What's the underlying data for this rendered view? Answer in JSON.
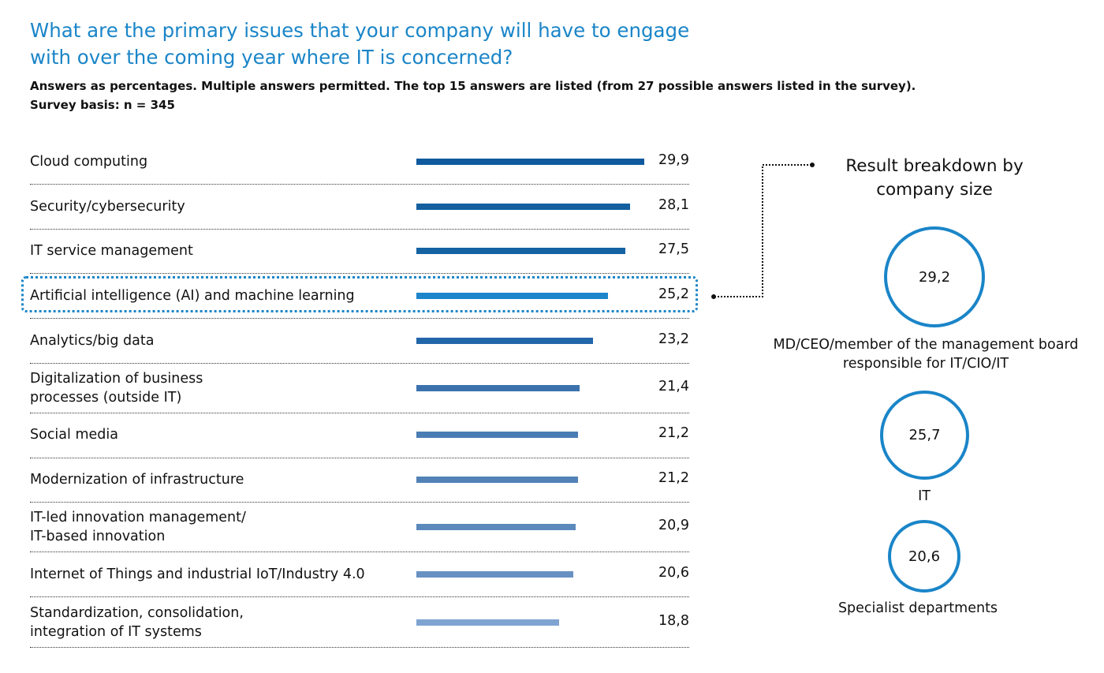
{
  "title_lines": [
    "What are the primary issues that your company will have to engage",
    "with over the coming year where IT is concerned?"
  ],
  "subtitle_lines": [
    "Answers as percentages. Multiple answers permitted. The top 15 answers are listed (from 27 possible answers listed in the survey).",
    "Survey basis: n = 345"
  ],
  "colors": {
    "accent": "#1a85c8",
    "bars": [
      "#0f5a9e",
      "#135f9f",
      "#1563a3",
      "#1c85cc",
      "#2266aa",
      "#3b72ad",
      "#4a7db3",
      "#5282b6",
      "#5b89bb",
      "#6890c2",
      "#7fa4d2"
    ]
  },
  "chart_data": {
    "type": "bar",
    "categories": [
      "Cloud computing",
      "Security/cybersecurity",
      "IT service management",
      "Artificial intelligence (AI) and machine learning",
      "Analytics/big data",
      "Digitalization of business processes (outside IT)",
      "Social media",
      "Modernization of infrastructure",
      "IT-led innovation management/ IT-based innovation",
      "Internet of Things and industrial IoT/Industry 4.0",
      "Standardization, consolidation, integration of IT systems"
    ],
    "category_lines": [
      [
        "Cloud computing"
      ],
      [
        "Security/cybersecurity"
      ],
      [
        "IT service management"
      ],
      [
        "Artificial intelligence (AI) and machine learning"
      ],
      [
        "Analytics/big data"
      ],
      [
        "Digitalization of business",
        "processes (outside IT)"
      ],
      [
        "Social media"
      ],
      [
        "Modernization of infrastructure"
      ],
      [
        "IT-led innovation management/",
        "IT-based innovation"
      ],
      [
        "Internet of Things and industrial IoT/Industry 4.0"
      ],
      [
        "Standardization, consolidation,",
        "integration of IT systems"
      ]
    ],
    "values": [
      29.9,
      28.1,
      27.5,
      25.2,
      23.2,
      21.4,
      21.2,
      21.2,
      20.9,
      20.6,
      18.8
    ],
    "value_labels": [
      "29,9",
      "28,1",
      "27,5",
      "25,2",
      "23,2",
      "21,4",
      "21,2",
      "21,2",
      "20,9",
      "20,6",
      "18,8"
    ],
    "highlighted_category": "Artificial intelligence (AI) and machine learning"
  },
  "breakdown": {
    "title_lines": [
      "Result breakdown by",
      "company size"
    ],
    "groups": [
      {
        "value": 29.2,
        "value_label": "29,2",
        "label_lines": [
          "MD/CEO/member of the management board",
          "responsible for IT/CIO/IT"
        ]
      },
      {
        "value": 25.7,
        "value_label": "25,7",
        "label_lines": [
          "IT"
        ]
      },
      {
        "value": 20.6,
        "value_label": "20,6",
        "label_lines": [
          "Specialist departments"
        ]
      }
    ]
  }
}
